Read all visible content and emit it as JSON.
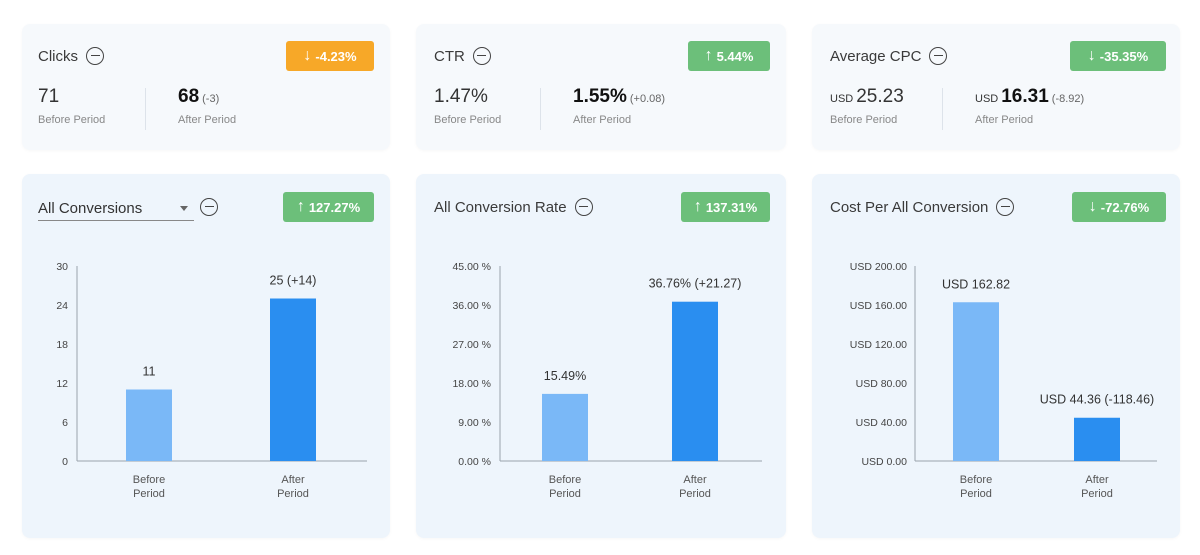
{
  "colors": {
    "orange": "#f7a828",
    "green": "#6cbf7a",
    "bar_light": "#7ab8f7",
    "bar_dark": "#2a8ef0"
  },
  "kpis": [
    {
      "title": "Clicks",
      "badge": {
        "text": "-4.23%",
        "arrow": "↓",
        "color": "#f7a828"
      },
      "before": {
        "currency": "",
        "value": "71",
        "label": "Before Period"
      },
      "after": {
        "currency": "",
        "value": "68",
        "diff": "(-3)",
        "label": "After Period"
      }
    },
    {
      "title": "CTR",
      "badge": {
        "text": "5.44%",
        "arrow": "↑",
        "color": "#6cbf7a"
      },
      "before": {
        "currency": "",
        "value": "1.47%",
        "label": "Before Period"
      },
      "after": {
        "currency": "",
        "value": "1.55%",
        "diff": "(+0.08)",
        "label": "After Period"
      }
    },
    {
      "title": "Average CPC",
      "badge": {
        "text": "-35.35%",
        "arrow": "↓",
        "color": "#6cbf7a"
      },
      "before": {
        "currency": "USD",
        "value": "25.23",
        "label": "Before Period"
      },
      "after": {
        "currency": "USD",
        "value": "16.31",
        "diff": "(-8.92)",
        "label": "After Period"
      }
    }
  ],
  "charts": [
    {
      "title": "All Conversions",
      "is_dropdown": true,
      "badge": {
        "text": "127.27%",
        "arrow": "↑",
        "color": "#6cbf7a"
      }
    },
    {
      "title": "All Conversion Rate",
      "is_dropdown": false,
      "badge": {
        "text": "137.31%",
        "arrow": "↑",
        "color": "#6cbf7a"
      }
    },
    {
      "title": "Cost Per All Conversion",
      "is_dropdown": false,
      "badge": {
        "text": "-72.76%",
        "arrow": "↓",
        "color": "#6cbf7a"
      }
    }
  ],
  "chart_data": [
    {
      "type": "bar",
      "title": "All Conversions",
      "categories": [
        "Before Period",
        "After Period"
      ],
      "values": [
        11,
        25
      ],
      "data_labels": [
        "11",
        "25 (+14)"
      ],
      "yticks": [
        "0",
        "6",
        "12",
        "18",
        "24",
        "30"
      ],
      "ylim": [
        0,
        30
      ]
    },
    {
      "type": "bar",
      "title": "All Conversion Rate",
      "categories": [
        "Before Period",
        "After Period"
      ],
      "values": [
        15.49,
        36.76
      ],
      "data_labels": [
        "15.49%",
        "36.76% (+21.27)"
      ],
      "yticks": [
        "0.00 %",
        "9.00 %",
        "18.00 %",
        "27.00 %",
        "36.00 %",
        "45.00 %"
      ],
      "ylim": [
        0,
        45
      ]
    },
    {
      "type": "bar",
      "title": "Cost Per All Conversion",
      "categories": [
        "Before Period",
        "After Period"
      ],
      "values": [
        162.82,
        44.36
      ],
      "data_labels": [
        "USD 162.82",
        "USD 44.36 (-118.46)"
      ],
      "yticks": [
        "USD 0.00",
        "USD 40.00",
        "USD 80.00",
        "USD 120.00",
        "USD 160.00",
        "USD 200.00"
      ],
      "ylim": [
        0,
        200
      ]
    }
  ]
}
